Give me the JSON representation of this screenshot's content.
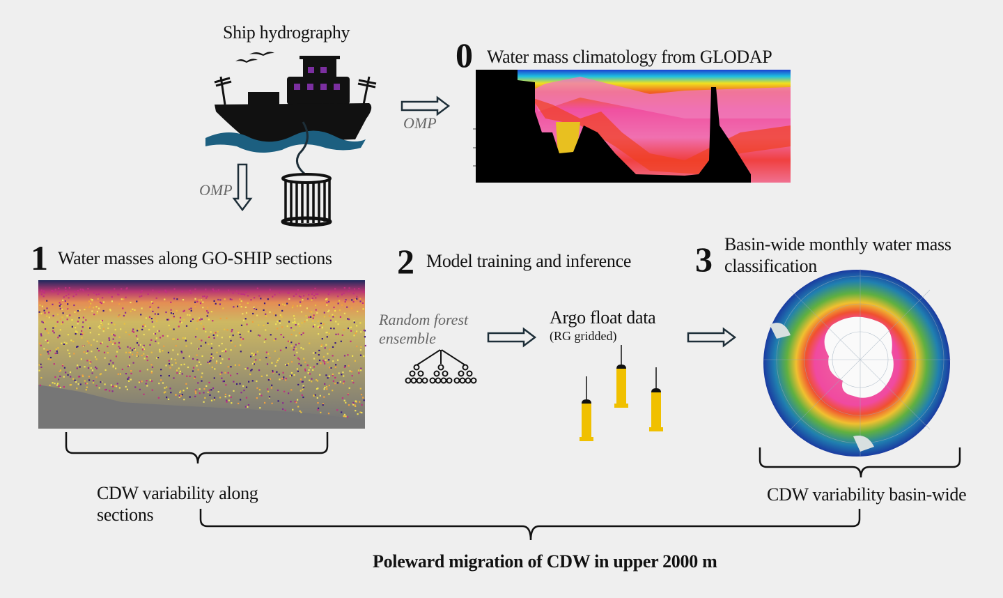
{
  "ship": {
    "title": "Ship hydrography",
    "omp_right": "OMP",
    "omp_down": "OMP"
  },
  "step0": {
    "number": "0",
    "title": "Water mass climatology from GLODAP"
  },
  "step1": {
    "number": "1",
    "title": "Water masses along GO-SHIP sections"
  },
  "step2": {
    "number": "2",
    "title": "Model training and inference",
    "model_line1": "Random forest",
    "model_line2": "ensemble",
    "data_title": "Argo float data",
    "data_subtitle": "(RG gridded)"
  },
  "step3": {
    "number": "3",
    "title_line1": "Basin-wide monthly water mass",
    "title_line2": "classification"
  },
  "outcomes": {
    "sections_line1": "CDW variability along",
    "sections_line2": "sections",
    "basin": "CDW variability basin-wide",
    "conclusion": "Poleward migration of CDW in upper 2000 m"
  },
  "colors": {
    "ship_window": "#7b2fa0",
    "wave": "#1c5f80",
    "argo": "#f0c000",
    "arrow": "#1d2e38",
    "background": "#efefef"
  }
}
